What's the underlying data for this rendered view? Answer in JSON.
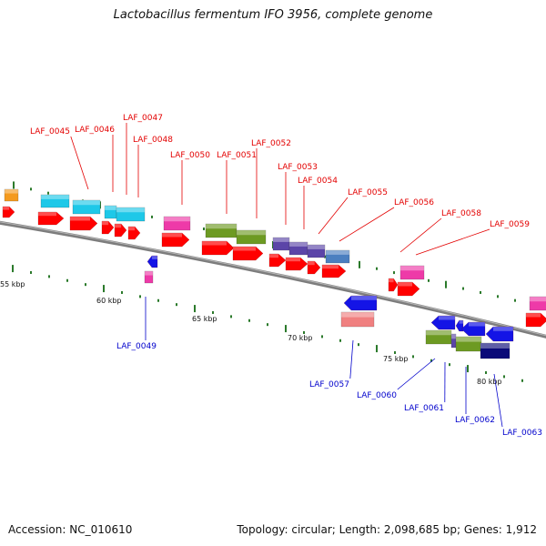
{
  "title": "Lactobacillus fermentum IFO 3956, complete genome",
  "footer": {
    "accession": "Accession: NC_010610",
    "summary": "Topology: circular; Length: 2,098,685 bp; Genes: 1,912"
  },
  "colors": {
    "backbone": "#8c8c8c",
    "tick": "#2b7a2b",
    "forward_label": "#e30000",
    "reverse_label": "#0000cc",
    "cds": "#ff0000",
    "cyan": "#1ec8e8",
    "magenta": "#ee3aa8",
    "olive": "#6d9a22",
    "purple": "#5b45a8",
    "steel": "#4b7fc0",
    "blue": "#1414e6",
    "salmon": "#f08080",
    "navy": "#0a0a78",
    "orange": "#f49a1e"
  },
  "kbp_labels": [
    "55 kbp",
    "60 kbp",
    "65 kbp",
    "70 kbp",
    "75 kbp",
    "80 kbp"
  ],
  "forward_genes": [
    "LAF_0045",
    "LAF_0046",
    "LAF_0047",
    "LAF_0048",
    "LAF_0050",
    "LAF_0051",
    "LAF_0052",
    "LAF_0053",
    "LAF_0054",
    "LAF_0055",
    "LAF_0056",
    "LAF_0058",
    "LAF_0059"
  ],
  "reverse_genes": [
    "LAF_0049",
    "LAF_0057",
    "LAF_0060",
    "LAF_0061",
    "LAF_0062",
    "LAF_0063"
  ]
}
